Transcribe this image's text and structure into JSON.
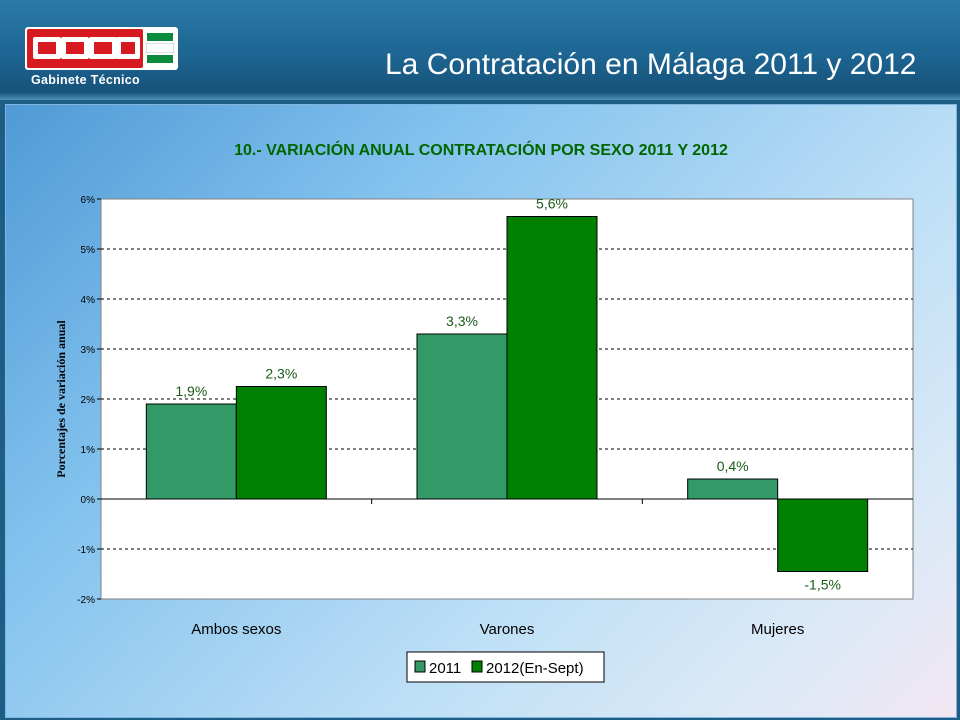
{
  "header": {
    "title": "La Contratación en Málaga 2011 y 2012",
    "logo_caption": "Gabinete   Técnico",
    "logo_text": "CCOO"
  },
  "colors": {
    "banner": "#1d6592",
    "logo_red": "#d71920",
    "series_2011": "#339966",
    "series_2012": "#008000",
    "label_text": "#006600",
    "title_text": "#006600"
  },
  "chart_data": {
    "type": "bar",
    "title": "10.- VARIACIÓN  ANUAL CONTRATACIÓN POR SEXO 2011 Y 2012",
    "xlabel": "",
    "ylabel": "Porcentajes de variación anual",
    "categories": [
      "Ambos sexos",
      "Varones",
      "Mujeres"
    ],
    "series": [
      {
        "name": "2011",
        "values": [
          1.9,
          3.3,
          0.4
        ],
        "labels": [
          "1,9%",
          "3,3%",
          "0,4%"
        ]
      },
      {
        "name": "2012(En-Sept)",
        "values": [
          2.25,
          5.65,
          -1.45
        ],
        "labels": [
          "2,3%",
          "5,6%",
          "-1,5%"
        ]
      }
    ],
    "ylim": [
      -2,
      6
    ],
    "yticks": [
      "-2%",
      "-1%",
      "0%",
      "1%",
      "2%",
      "3%",
      "4%",
      "5%",
      "6%"
    ],
    "grid": true,
    "legend_position": "bottom"
  }
}
